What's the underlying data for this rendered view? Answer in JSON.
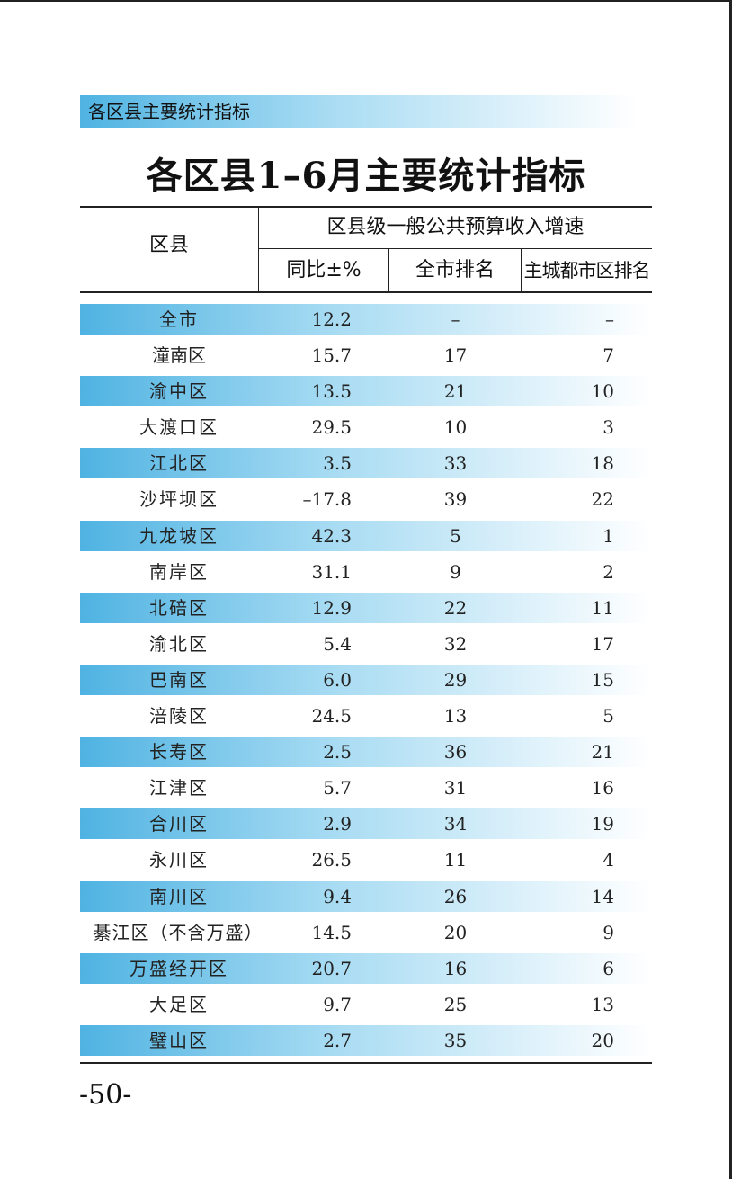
{
  "section_label": "各区县主要统计指标",
  "title": "各区县1–6月主要统计指标",
  "header": {
    "district": "区县",
    "group": "区县级一般公共预算收入增速",
    "yoy": "同比±%",
    "city_rank": "全市排名",
    "main_rank": "主城都市区排名"
  },
  "rows": [
    {
      "name": "全市",
      "yoy": "12.2",
      "city_rank": "–",
      "main_rank": "–"
    },
    {
      "name": "潼南区",
      "yoy": "15.7",
      "city_rank": "17",
      "main_rank": "7"
    },
    {
      "name": "渝中区",
      "yoy": "13.5",
      "city_rank": "21",
      "main_rank": "10"
    },
    {
      "name": "大渡口区",
      "yoy": "29.5",
      "city_rank": "10",
      "main_rank": "3"
    },
    {
      "name": "江北区",
      "yoy": "3.5",
      "city_rank": "33",
      "main_rank": "18"
    },
    {
      "name": "沙坪坝区",
      "yoy": "–17.8",
      "city_rank": "39",
      "main_rank": "22"
    },
    {
      "name": "九龙坡区",
      "yoy": "42.3",
      "city_rank": "5",
      "main_rank": "1"
    },
    {
      "name": "南岸区",
      "yoy": "31.1",
      "city_rank": "9",
      "main_rank": "2"
    },
    {
      "name": "北碚区",
      "yoy": "12.9",
      "city_rank": "22",
      "main_rank": "11"
    },
    {
      "name": "渝北区",
      "yoy": "5.4",
      "city_rank": "32",
      "main_rank": "17"
    },
    {
      "name": "巴南区",
      "yoy": "6.0",
      "city_rank": "29",
      "main_rank": "15"
    },
    {
      "name": "涪陵区",
      "yoy": "24.5",
      "city_rank": "13",
      "main_rank": "5"
    },
    {
      "name": "长寿区",
      "yoy": "2.5",
      "city_rank": "36",
      "main_rank": "21"
    },
    {
      "name": "江津区",
      "yoy": "5.7",
      "city_rank": "31",
      "main_rank": "16"
    },
    {
      "name": "合川区",
      "yoy": "2.9",
      "city_rank": "34",
      "main_rank": "19"
    },
    {
      "name": "永川区",
      "yoy": "26.5",
      "city_rank": "11",
      "main_rank": "4"
    },
    {
      "name": "南川区",
      "yoy": "9.4",
      "city_rank": "26",
      "main_rank": "14"
    },
    {
      "name": "綦江区（不含万盛）",
      "yoy": "14.5",
      "city_rank": "20",
      "main_rank": "9"
    },
    {
      "name": "万盛经开区",
      "yoy": "20.7",
      "city_rank": "16",
      "main_rank": "6"
    },
    {
      "name": "大足区",
      "yoy": "9.7",
      "city_rank": "25",
      "main_rank": "13"
    },
    {
      "name": "璧山区",
      "yoy": "2.7",
      "city_rank": "35",
      "main_rank": "20"
    }
  ],
  "page_number": "-50-"
}
